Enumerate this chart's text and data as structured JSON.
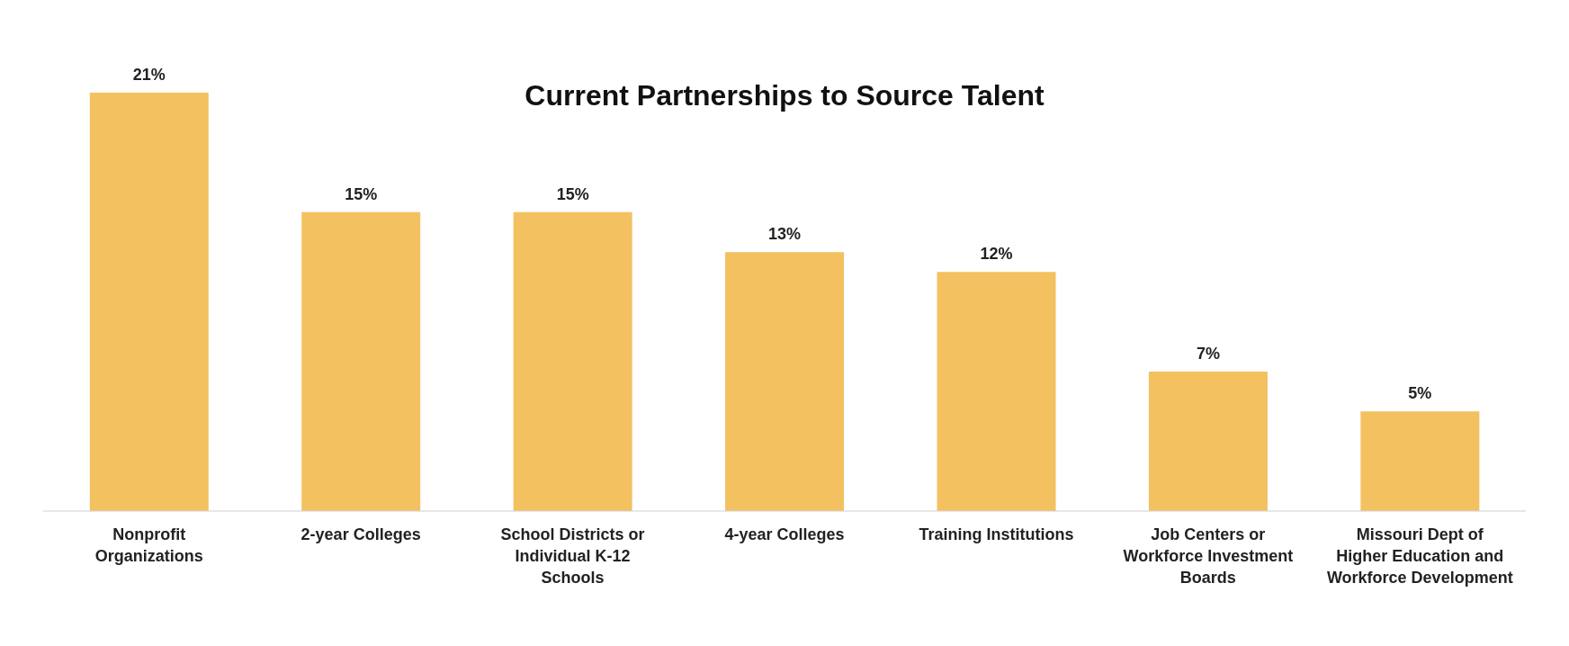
{
  "chart_data": {
    "type": "bar",
    "title": "Current Partnerships to Source Talent",
    "categories": [
      "Nonprofit Organizations",
      "2-year Colleges",
      "School Districts or Individual K-12 Schools",
      "4-year Colleges",
      "Training Institutions",
      "Job Centers or Workforce Investment Boards",
      "Missouri Dept of Higher Education and Workforce Development"
    ],
    "values": [
      21,
      15,
      15,
      13,
      12,
      7,
      5
    ],
    "value_labels": [
      "21%",
      "15%",
      "15%",
      "13%",
      "12%",
      "7%",
      "5%"
    ],
    "color": "#f4c160",
    "grid": false
  }
}
